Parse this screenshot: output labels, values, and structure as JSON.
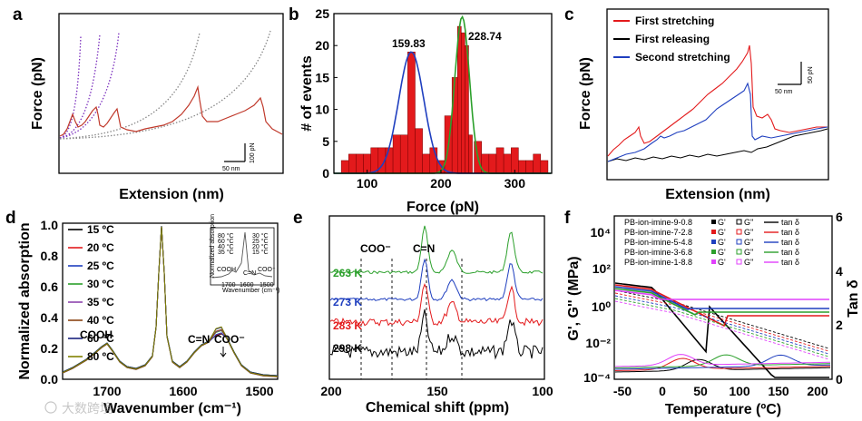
{
  "panels": {
    "a": {
      "label": "a",
      "xlabel": "Extension (nm)",
      "ylabel": "Force (pN)",
      "scalebar_x": "50 nm",
      "scalebar_y": "100 pN",
      "colors": {
        "trace": "#c0392b",
        "fit_left": "#7b2fbe",
        "fit_right": "#888888"
      }
    },
    "b": {
      "label": "b",
      "xlabel": "Force (pN)",
      "ylabel": "# of events",
      "peak1": "159.83",
      "peak2": "228.74",
      "colors": {
        "bars": "#e31a1c",
        "fit1": "#1f3fbf",
        "fit2": "#2ca02c"
      },
      "chart_data": {
        "type": "bar",
        "x_bin_centers": [
          70,
          80,
          90,
          100,
          110,
          120,
          130,
          140,
          150,
          160,
          170,
          180,
          190,
          200,
          210,
          220,
          225,
          230,
          235,
          240,
          250,
          260,
          270,
          280,
          290,
          300,
          310,
          320,
          330,
          340
        ],
        "values": [
          2,
          3,
          3,
          3,
          4,
          4,
          4,
          6,
          6,
          19,
          7,
          3,
          4,
          2,
          9,
          15,
          23,
          22,
          20,
          6,
          5,
          3,
          3,
          4,
          3,
          4,
          2,
          2,
          3,
          2
        ],
        "xlim": [
          55,
          350
        ],
        "ylim": [
          0,
          25
        ],
        "xticks": [
          100,
          200,
          300
        ],
        "yticks": [
          0,
          5,
          10,
          15,
          20,
          25
        ],
        "fits": [
          {
            "name": "159.83",
            "mu": 159.83,
            "sigma": 17,
            "amp": 19
          },
          {
            "name": "228.74",
            "mu": 228.74,
            "sigma": 10,
            "amp": 24.5
          }
        ]
      }
    },
    "c": {
      "label": "c",
      "xlabel": "Extension (nm)",
      "ylabel": "Force (pN)",
      "scalebar_x": "50 nm",
      "scalebar_y": "50 pN",
      "legend": [
        {
          "name": "First stretching",
          "color": "#e31a1c"
        },
        {
          "name": "First releasing",
          "color": "#000000"
        },
        {
          "name": "Second stretching",
          "color": "#1f3fbf"
        }
      ]
    },
    "d": {
      "label": "d",
      "xlabel": "Wavenumber (cm⁻¹)",
      "ylabel": "Normalized absorption",
      "xticks": [
        "1700",
        "1600",
        "1500"
      ],
      "yticks": [
        "0.0",
        "0.2",
        "0.4",
        "0.6",
        "0.8",
        "1.0"
      ],
      "ann_cooh": "COOH",
      "ann_cn": "C=N",
      "ann_coo": "COO⁻",
      "legend": [
        {
          "name": "15 ºC",
          "color": "#000000"
        },
        {
          "name": "20 ºC",
          "color": "#e31a1c"
        },
        {
          "name": "25 ºC",
          "color": "#1f3fbf"
        },
        {
          "name": "30 ºC",
          "color": "#2ca02c"
        },
        {
          "name": "35 ºC",
          "color": "#8e44ad"
        },
        {
          "name": "40 ºC",
          "color": "#8b4513"
        },
        {
          "name": "60 ºC",
          "color": "#1a237e"
        },
        {
          "name": "80 ºC",
          "color": "#808000"
        }
      ],
      "inset": {
        "ylabel": "Normalized absorption",
        "xlabel": "Wavenumber (cm⁻¹)",
        "xticks": [
          "1700",
          "1600",
          "1500"
        ],
        "legend_col1": [
          "80 °C",
          "60 °C",
          "40 °C",
          "35 °C"
        ],
        "legend_col2": [
          "30 °C",
          "25 °C",
          "20 °C",
          "15 °C"
        ],
        "ann_cooh": "COOH",
        "ann_cn": "C=N",
        "ann_coo": "COO⁻"
      }
    },
    "e": {
      "label": "e",
      "xlabel": "Chemical shift (ppm)",
      "xticks": [
        "200",
        "150",
        "100"
      ],
      "ann_coo": "COO⁻",
      "ann_cn": "C=N",
      "traces": [
        {
          "name": "263 K",
          "color": "#2ca02c"
        },
        {
          "name": "273 K",
          "color": "#1f3fbf"
        },
        {
          "name": "283 K",
          "color": "#e31a1c"
        },
        {
          "name": "298 K",
          "color": "#000000"
        }
      ]
    },
    "f": {
      "label": "f",
      "xlabel": "Temperature (ºC)",
      "ylabel_left": "G', G'' (MPa)",
      "ylabel_right": "Tan δ",
      "xticks": [
        "-50",
        "0",
        "50",
        "100",
        "150",
        "200"
      ],
      "yticks_left": [
        "10⁴",
        "10²",
        "10⁰",
        "10⁻²",
        "10⁻⁴"
      ],
      "yticks_right": [
        "0",
        "2",
        "4",
        "6"
      ],
      "legend_hdr": {
        "g1": "G'",
        "g2": "G''",
        "tan": "tan δ"
      },
      "samples": [
        {
          "name": "PB-ion-imine-9-0.8",
          "color": "#000000"
        },
        {
          "name": "PB-ion-imine-7-2.8",
          "color": "#e31a1c"
        },
        {
          "name": "PB-ion-imine-5-4.8",
          "color": "#1f3fbf"
        },
        {
          "name": "PB-ion-imine-3-6.8",
          "color": "#2ca02c"
        },
        {
          "name": "PB-ion-imine-1-8.8",
          "color": "#e040fb"
        }
      ]
    }
  },
  "watermark": "大数跨境"
}
